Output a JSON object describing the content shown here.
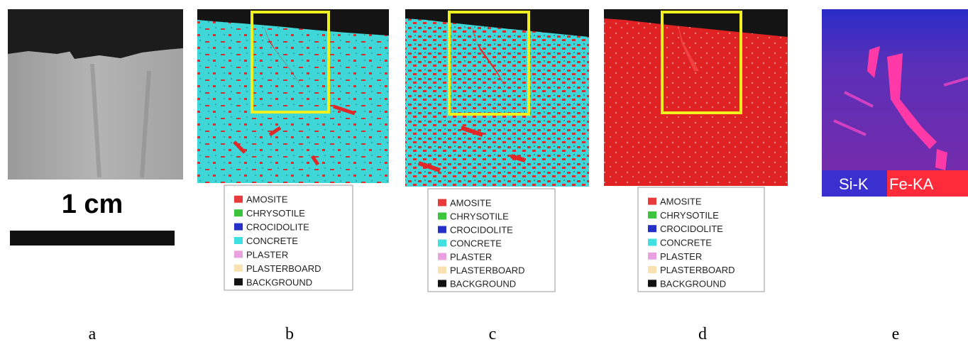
{
  "panels": [
    {
      "label": "a",
      "scale_bar": "1 cm"
    },
    {
      "label": "b",
      "legend": [
        {
          "name": "AMOSITE",
          "color": "#e83a3a"
        },
        {
          "name": "CHRYSOTILE",
          "color": "#3cc43c"
        },
        {
          "name": "CROCIDOLITE",
          "color": "#2430c8"
        },
        {
          "name": "CONCRETE",
          "color": "#40e0e0"
        },
        {
          "name": "PLASTER",
          "color": "#e8a0e0"
        },
        {
          "name": "PLASTERBOARD",
          "color": "#f8e0b0"
        },
        {
          "name": "BACKGROUND",
          "color": "#111111"
        }
      ]
    },
    {
      "label": "c",
      "legend": [
        {
          "name": "AMOSITE",
          "color": "#e83a3a"
        },
        {
          "name": "CHRYSOTILE",
          "color": "#3cc43c"
        },
        {
          "name": "CROCIDOLITE",
          "color": "#2430c8"
        },
        {
          "name": "CONCRETE",
          "color": "#40e0e0"
        },
        {
          "name": "PLASTER",
          "color": "#e8a0e0"
        },
        {
          "name": "PLASTERBOARD",
          "color": "#f8e0b0"
        },
        {
          "name": "BACKGROUND",
          "color": "#111111"
        }
      ]
    },
    {
      "label": "d",
      "legend": [
        {
          "name": "AMOSITE",
          "color": "#e83a3a"
        },
        {
          "name": "CHRYSOTILE",
          "color": "#3cc43c"
        },
        {
          "name": "CROCIDOLITE",
          "color": "#2430c8"
        },
        {
          "name": "CONCRETE",
          "color": "#40e0e0"
        },
        {
          "name": "PLASTER",
          "color": "#e8a0e0"
        },
        {
          "name": "PLASTERBOARD",
          "color": "#f8e0b0"
        },
        {
          "name": "BACKGROUND",
          "color": "#111111"
        }
      ]
    },
    {
      "label": "e",
      "overlay_labels": [
        "Si-K",
        "Fe-KA"
      ]
    }
  ]
}
